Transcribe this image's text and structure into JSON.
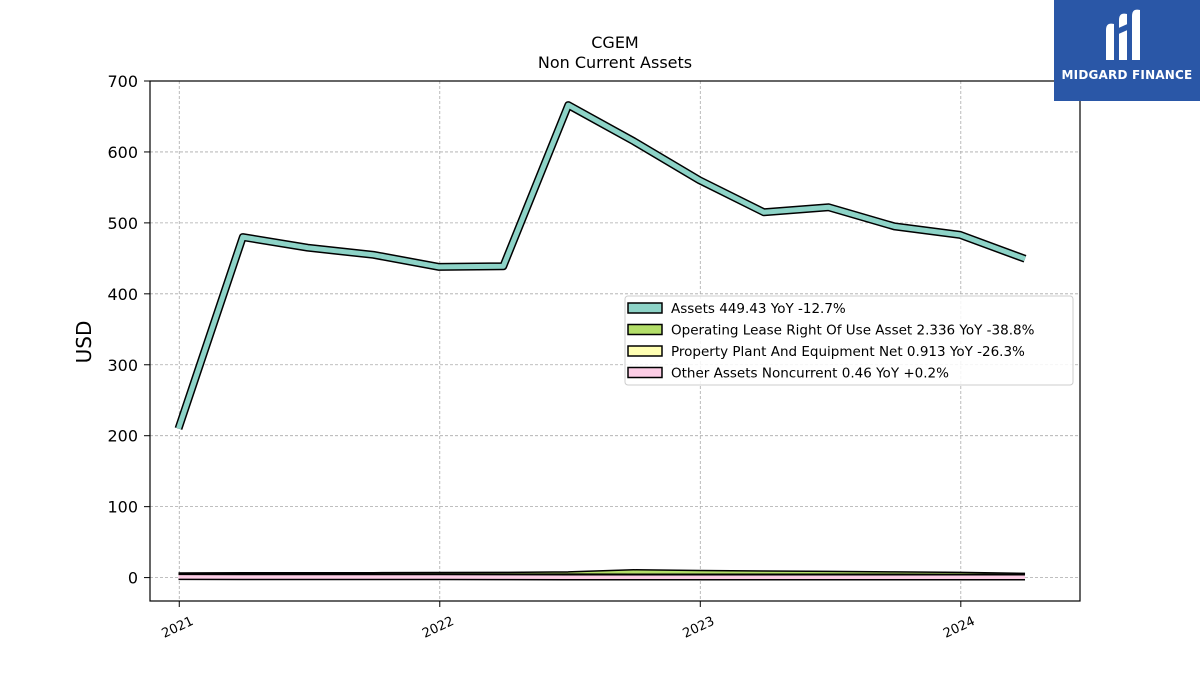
{
  "logo": {
    "text": "MIDGARD FINANCE",
    "icon": "midgard-m-logo-icon"
  },
  "colors": {
    "assets": "#8dd3c7",
    "lease": "#b3de69",
    "ppe": "#ffffb3",
    "other": "#fccde5",
    "edge": "#000000",
    "grid": "#aaaaaa"
  },
  "chart_data": {
    "type": "line",
    "title": "CGEM",
    "subtitle": "Non Current  Assets",
    "ylabel": "USD",
    "xlabel": "",
    "ylim": [
      -33,
      700
    ],
    "yticks": [
      0,
      100,
      200,
      300,
      400,
      500,
      600,
      700
    ],
    "xlim": [
      "2020-11-21",
      "2024-06-16"
    ],
    "xticks": [
      {
        "date": "2021-01-01",
        "label": "2021"
      },
      {
        "date": "2022-01-01",
        "label": "2022"
      },
      {
        "date": "2023-01-01",
        "label": "2023"
      },
      {
        "date": "2024-01-01",
        "label": "2024"
      }
    ],
    "grid": true,
    "legend_position": "center-right",
    "x": [
      "2020-12-31",
      "2021-03-31",
      "2021-06-30",
      "2021-09-30",
      "2021-12-31",
      "2022-03-31",
      "2022-06-30",
      "2022-09-30",
      "2022-12-31",
      "2023-03-31",
      "2023-06-30",
      "2023-09-30",
      "2023-12-31",
      "2024-03-31"
    ],
    "series": [
      {
        "name": "Assets",
        "legend": "Assets  449.43 YoY -12.7%",
        "color": "#8dd3c7",
        "values": [
          210,
          480,
          465,
          455,
          438,
          439,
          666,
          615,
          560,
          515,
          522,
          495,
          483,
          449.43
        ]
      },
      {
        "name": "Operating Lease Right Of Use Asset",
        "legend": "Operating Lease Right Of Use Asset  2.336 YoY -38.8%",
        "color": "#b3de69",
        "values": [
          3.0,
          3.2,
          3.3,
          3.4,
          3.6,
          3.8,
          4.5,
          7.5,
          6.5,
          5.8,
          5.2,
          4.5,
          3.8,
          2.336
        ]
      },
      {
        "name": "Property Plant And Equipment Net",
        "legend": "Property Plant And Equipment Net  0.913 YoY -26.3%",
        "color": "#ffffb3",
        "values": [
          1.8,
          1.7,
          1.6,
          1.5,
          1.5,
          1.4,
          1.4,
          1.3,
          1.3,
          1.2,
          1.2,
          1.1,
          1.0,
          0.913
        ]
      },
      {
        "name": "Other Assets Noncurrent",
        "legend": "Other Assets Noncurrent  0.46 YoY +0.2%",
        "color": "#fccde5",
        "values": [
          1.0,
          0.9,
          0.9,
          0.8,
          0.8,
          0.7,
          0.6,
          0.5,
          0.46,
          0.46,
          0.46,
          0.46,
          0.46,
          0.46
        ]
      }
    ]
  }
}
